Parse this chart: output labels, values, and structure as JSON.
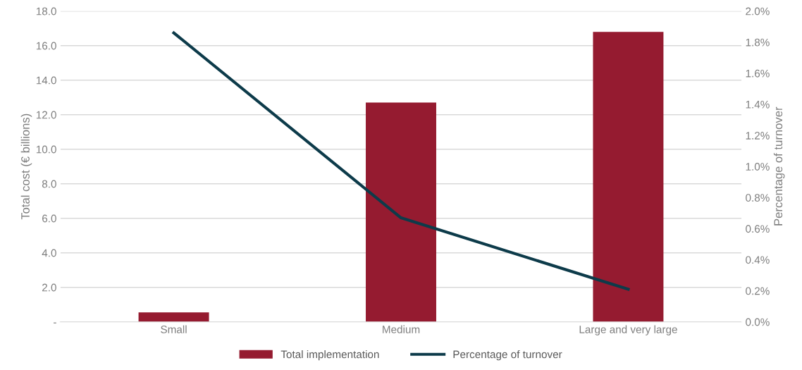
{
  "chart_data": {
    "type": "bar",
    "ylabel": "Total cost (€ billions)",
    "y2label": "Percentage of turnover",
    "categories": [
      "Small",
      "Medium",
      "Large and very large"
    ],
    "series": [
      {
        "name": "Total implementation",
        "color": "#951b30",
        "values": [
          0.55,
          12.7,
          16.8
        ]
      },
      {
        "name": "Percentage of turnover",
        "type": "line",
        "axis": "y2",
        "color": "#0d3b4a",
        "values": [
          1.86,
          0.67,
          0.21
        ]
      }
    ],
    "ylim": [
      0,
      18
    ],
    "yticks": [
      {
        "value": 0,
        "label": "-"
      },
      {
        "value": 2,
        "label": "2.0"
      },
      {
        "value": 4,
        "label": "4.0"
      },
      {
        "value": 6,
        "label": "6.0"
      },
      {
        "value": 8,
        "label": "8.0"
      },
      {
        "value": 10,
        "label": "10.0"
      },
      {
        "value": 12,
        "label": "12.0"
      },
      {
        "value": 14,
        "label": "14.0"
      },
      {
        "value": 16,
        "label": "16.0"
      },
      {
        "value": 18,
        "label": "18.0"
      }
    ],
    "y2lim": [
      0,
      2
    ],
    "y2ticks": [
      {
        "value": 0,
        "label": "0.0%"
      },
      {
        "value": 0.2,
        "label": "0.2%"
      },
      {
        "value": 0.4,
        "label": "0.4%"
      },
      {
        "value": 0.6,
        "label": "0.6%"
      },
      {
        "value": 0.8,
        "label": "0.8%"
      },
      {
        "value": 1.0,
        "label": "1.0%"
      },
      {
        "value": 1.2,
        "label": "1.2%"
      },
      {
        "value": 1.4,
        "label": "1.4%"
      },
      {
        "value": 1.6,
        "label": "1.6%"
      },
      {
        "value": 1.8,
        "label": "1.8%"
      },
      {
        "value": 2.0,
        "label": "2.0%"
      }
    ],
    "grid": "y",
    "legend": "bottom",
    "marker": "none",
    "line_style": "solid"
  }
}
